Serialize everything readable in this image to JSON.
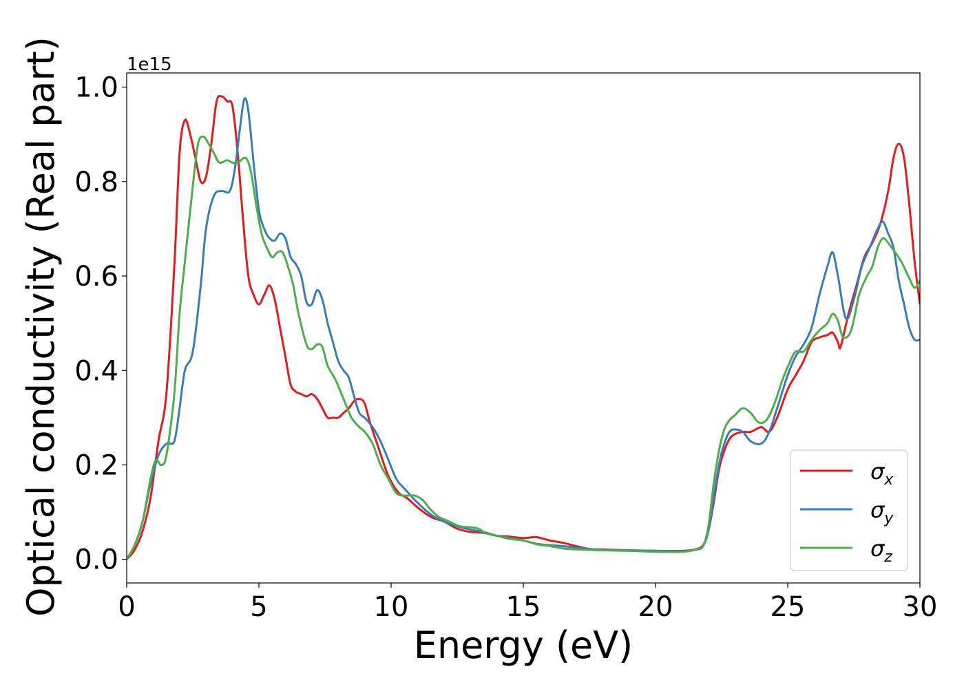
{
  "chart_data": {
    "type": "line",
    "xlabel": "Energy (eV)",
    "ylabel": "Optical conductivity (Real part)",
    "y_offset_label": "1e15",
    "xlim": [
      0,
      30
    ],
    "ylim": [
      -0.05,
      1.03
    ],
    "y_scale_factor": 1000000000000000.0,
    "grid": false,
    "legend_position": "lower-right",
    "x_ticks": [
      0,
      5,
      10,
      15,
      20,
      25,
      30
    ],
    "x_tick_labels": [
      "0",
      "5",
      "10",
      "15",
      "20",
      "25",
      "30"
    ],
    "y_ticks": [
      0.0,
      0.2,
      0.4,
      0.6,
      0.8,
      1.0
    ],
    "y_tick_labels": [
      "0.0",
      "0.2",
      "0.4",
      "0.6",
      "0.8",
      "1.0"
    ],
    "series": [
      {
        "name": "σx",
        "symbol": "σ",
        "subscript": "x",
        "color": "#e41a1c",
        "points": [
          [
            0,
            0
          ],
          [
            0.3,
            0.02
          ],
          [
            0.6,
            0.06
          ],
          [
            0.9,
            0.13
          ],
          [
            1.2,
            0.25
          ],
          [
            1.5,
            0.35
          ],
          [
            1.8,
            0.62
          ],
          [
            2.0,
            0.86
          ],
          [
            2.2,
            0.93
          ],
          [
            2.4,
            0.9
          ],
          [
            2.6,
            0.85
          ],
          [
            2.8,
            0.8
          ],
          [
            3.0,
            0.81
          ],
          [
            3.2,
            0.88
          ],
          [
            3.4,
            0.97
          ],
          [
            3.6,
            0.98
          ],
          [
            3.8,
            0.97
          ],
          [
            4.0,
            0.96
          ],
          [
            4.2,
            0.86
          ],
          [
            4.4,
            0.72
          ],
          [
            4.6,
            0.6
          ],
          [
            4.8,
            0.56
          ],
          [
            5.0,
            0.54
          ],
          [
            5.2,
            0.56
          ],
          [
            5.4,
            0.58
          ],
          [
            5.6,
            0.55
          ],
          [
            5.8,
            0.49
          ],
          [
            6.0,
            0.43
          ],
          [
            6.2,
            0.37
          ],
          [
            6.4,
            0.355
          ],
          [
            6.6,
            0.35
          ],
          [
            6.8,
            0.345
          ],
          [
            7.0,
            0.35
          ],
          [
            7.2,
            0.34
          ],
          [
            7.4,
            0.32
          ],
          [
            7.6,
            0.3
          ],
          [
            7.8,
            0.3
          ],
          [
            8.0,
            0.3
          ],
          [
            8.2,
            0.31
          ],
          [
            8.4,
            0.32
          ],
          [
            8.6,
            0.335
          ],
          [
            8.8,
            0.34
          ],
          [
            9.0,
            0.33
          ],
          [
            9.2,
            0.29
          ],
          [
            9.5,
            0.24
          ],
          [
            9.8,
            0.19
          ],
          [
            10.0,
            0.165
          ],
          [
            10.3,
            0.14
          ],
          [
            10.6,
            0.13
          ],
          [
            11.0,
            0.11
          ],
          [
            11.5,
            0.09
          ],
          [
            12.0,
            0.08
          ],
          [
            12.5,
            0.065
          ],
          [
            13.0,
            0.058
          ],
          [
            13.5,
            0.056
          ],
          [
            14.0,
            0.05
          ],
          [
            14.5,
            0.048
          ],
          [
            15.0,
            0.045
          ],
          [
            15.5,
            0.047
          ],
          [
            16.0,
            0.04
          ],
          [
            16.5,
            0.035
          ],
          [
            17.0,
            0.028
          ],
          [
            17.5,
            0.022
          ],
          [
            18.0,
            0.021
          ],
          [
            19.0,
            0.019
          ],
          [
            20.0,
            0.018
          ],
          [
            21.0,
            0.018
          ],
          [
            21.5,
            0.021
          ],
          [
            21.8,
            0.03
          ],
          [
            22.0,
            0.06
          ],
          [
            22.2,
            0.12
          ],
          [
            22.4,
            0.19
          ],
          [
            22.6,
            0.23
          ],
          [
            22.8,
            0.255
          ],
          [
            23.0,
            0.265
          ],
          [
            23.3,
            0.27
          ],
          [
            23.6,
            0.27
          ],
          [
            24.0,
            0.28
          ],
          [
            24.3,
            0.27
          ],
          [
            24.6,
            0.3
          ],
          [
            25.0,
            0.36
          ],
          [
            25.3,
            0.39
          ],
          [
            25.6,
            0.42
          ],
          [
            25.9,
            0.46
          ],
          [
            26.2,
            0.47
          ],
          [
            26.5,
            0.475
          ],
          [
            26.7,
            0.48
          ],
          [
            26.9,
            0.46
          ],
          [
            27.0,
            0.45
          ],
          [
            27.3,
            0.52
          ],
          [
            27.6,
            0.58
          ],
          [
            27.9,
            0.64
          ],
          [
            28.2,
            0.67
          ],
          [
            28.5,
            0.71
          ],
          [
            28.8,
            0.78
          ],
          [
            29.0,
            0.85
          ],
          [
            29.2,
            0.88
          ],
          [
            29.4,
            0.85
          ],
          [
            29.6,
            0.75
          ],
          [
            29.8,
            0.63
          ],
          [
            30.0,
            0.54
          ]
        ]
      },
      {
        "name": "σy",
        "symbol": "σ",
        "subscript": "y",
        "color": "#377eb8",
        "points": [
          [
            0,
            0
          ],
          [
            0.3,
            0.03
          ],
          [
            0.6,
            0.08
          ],
          [
            0.9,
            0.16
          ],
          [
            1.2,
            0.22
          ],
          [
            1.5,
            0.245
          ],
          [
            1.8,
            0.25
          ],
          [
            2.0,
            0.32
          ],
          [
            2.2,
            0.4
          ],
          [
            2.5,
            0.44
          ],
          [
            2.8,
            0.58
          ],
          [
            3.0,
            0.7
          ],
          [
            3.3,
            0.77
          ],
          [
            3.6,
            0.78
          ],
          [
            3.9,
            0.78
          ],
          [
            4.1,
            0.83
          ],
          [
            4.3,
            0.92
          ],
          [
            4.45,
            0.975
          ],
          [
            4.6,
            0.95
          ],
          [
            4.8,
            0.84
          ],
          [
            5.0,
            0.74
          ],
          [
            5.2,
            0.7
          ],
          [
            5.4,
            0.68
          ],
          [
            5.6,
            0.675
          ],
          [
            5.8,
            0.69
          ],
          [
            6.0,
            0.68
          ],
          [
            6.2,
            0.64
          ],
          [
            6.4,
            0.625
          ],
          [
            6.6,
            0.6
          ],
          [
            6.8,
            0.545
          ],
          [
            7.0,
            0.54
          ],
          [
            7.2,
            0.57
          ],
          [
            7.4,
            0.55
          ],
          [
            7.6,
            0.5
          ],
          [
            7.8,
            0.46
          ],
          [
            8.0,
            0.42
          ],
          [
            8.2,
            0.4
          ],
          [
            8.4,
            0.385
          ],
          [
            8.6,
            0.345
          ],
          [
            8.8,
            0.31
          ],
          [
            9.0,
            0.3
          ],
          [
            9.3,
            0.28
          ],
          [
            9.6,
            0.25
          ],
          [
            9.9,
            0.21
          ],
          [
            10.2,
            0.17
          ],
          [
            10.5,
            0.15
          ],
          [
            11.0,
            0.12
          ],
          [
            11.5,
            0.095
          ],
          [
            12.0,
            0.08
          ],
          [
            12.5,
            0.07
          ],
          [
            13.0,
            0.063
          ],
          [
            13.5,
            0.058
          ],
          [
            14.0,
            0.05
          ],
          [
            14.5,
            0.045
          ],
          [
            15.0,
            0.04
          ],
          [
            15.5,
            0.033
          ],
          [
            16.0,
            0.03
          ],
          [
            16.5,
            0.028
          ],
          [
            17.0,
            0.025
          ],
          [
            17.5,
            0.022
          ],
          [
            18.0,
            0.02
          ],
          [
            19.0,
            0.019
          ],
          [
            20.0,
            0.018
          ],
          [
            21.0,
            0.017
          ],
          [
            21.5,
            0.02
          ],
          [
            21.8,
            0.028
          ],
          [
            22.0,
            0.06
          ],
          [
            22.2,
            0.13
          ],
          [
            22.4,
            0.2
          ],
          [
            22.6,
            0.245
          ],
          [
            22.8,
            0.27
          ],
          [
            23.0,
            0.275
          ],
          [
            23.3,
            0.27
          ],
          [
            23.6,
            0.25
          ],
          [
            24.0,
            0.245
          ],
          [
            24.3,
            0.27
          ],
          [
            24.6,
            0.32
          ],
          [
            25.0,
            0.39
          ],
          [
            25.3,
            0.43
          ],
          [
            25.6,
            0.455
          ],
          [
            25.9,
            0.49
          ],
          [
            26.2,
            0.56
          ],
          [
            26.5,
            0.62
          ],
          [
            26.7,
            0.65
          ],
          [
            26.9,
            0.6
          ],
          [
            27.2,
            0.51
          ],
          [
            27.5,
            0.55
          ],
          [
            27.8,
            0.62
          ],
          [
            28.1,
            0.66
          ],
          [
            28.4,
            0.7
          ],
          [
            28.6,
            0.715
          ],
          [
            28.8,
            0.69
          ],
          [
            29.0,
            0.66
          ],
          [
            29.2,
            0.59
          ],
          [
            29.4,
            0.54
          ],
          [
            29.6,
            0.49
          ],
          [
            29.8,
            0.465
          ],
          [
            30.0,
            0.465
          ]
        ]
      },
      {
        "name": "σz",
        "symbol": "σ",
        "subscript": "z",
        "color": "#4daf4a",
        "points": [
          [
            0,
            0
          ],
          [
            0.3,
            0.03
          ],
          [
            0.6,
            0.08
          ],
          [
            0.9,
            0.17
          ],
          [
            1.1,
            0.21
          ],
          [
            1.3,
            0.2
          ],
          [
            1.5,
            0.22
          ],
          [
            1.8,
            0.35
          ],
          [
            2.0,
            0.52
          ],
          [
            2.2,
            0.63
          ],
          [
            2.5,
            0.79
          ],
          [
            2.7,
            0.88
          ],
          [
            2.9,
            0.895
          ],
          [
            3.1,
            0.88
          ],
          [
            3.3,
            0.86
          ],
          [
            3.5,
            0.84
          ],
          [
            3.8,
            0.845
          ],
          [
            4.0,
            0.84
          ],
          [
            4.2,
            0.84
          ],
          [
            4.5,
            0.85
          ],
          [
            4.7,
            0.82
          ],
          [
            4.9,
            0.75
          ],
          [
            5.1,
            0.69
          ],
          [
            5.3,
            0.66
          ],
          [
            5.5,
            0.64
          ],
          [
            5.7,
            0.65
          ],
          [
            5.9,
            0.65
          ],
          [
            6.1,
            0.62
          ],
          [
            6.3,
            0.58
          ],
          [
            6.5,
            0.52
          ],
          [
            6.8,
            0.455
          ],
          [
            7.0,
            0.445
          ],
          [
            7.2,
            0.455
          ],
          [
            7.4,
            0.45
          ],
          [
            7.6,
            0.41
          ],
          [
            7.9,
            0.38
          ],
          [
            8.2,
            0.34
          ],
          [
            8.5,
            0.3
          ],
          [
            8.8,
            0.28
          ],
          [
            9.0,
            0.27
          ],
          [
            9.3,
            0.245
          ],
          [
            9.6,
            0.2
          ],
          [
            9.9,
            0.17
          ],
          [
            10.2,
            0.14
          ],
          [
            10.5,
            0.135
          ],
          [
            10.9,
            0.135
          ],
          [
            11.2,
            0.125
          ],
          [
            11.5,
            0.105
          ],
          [
            11.8,
            0.09
          ],
          [
            12.2,
            0.08
          ],
          [
            12.6,
            0.07
          ],
          [
            13.0,
            0.068
          ],
          [
            13.3,
            0.065
          ],
          [
            13.6,
            0.055
          ],
          [
            14.0,
            0.05
          ],
          [
            14.5,
            0.043
          ],
          [
            15.0,
            0.04
          ],
          [
            15.5,
            0.032
          ],
          [
            16.0,
            0.028
          ],
          [
            16.5,
            0.023
          ],
          [
            17.0,
            0.021
          ],
          [
            17.5,
            0.02
          ],
          [
            18.0,
            0.019
          ],
          [
            19.0,
            0.018
          ],
          [
            20.0,
            0.016
          ],
          [
            21.0,
            0.016
          ],
          [
            21.5,
            0.02
          ],
          [
            21.8,
            0.028
          ],
          [
            22.0,
            0.07
          ],
          [
            22.2,
            0.16
          ],
          [
            22.4,
            0.23
          ],
          [
            22.6,
            0.275
          ],
          [
            22.8,
            0.295
          ],
          [
            23.0,
            0.305
          ],
          [
            23.3,
            0.32
          ],
          [
            23.6,
            0.31
          ],
          [
            23.9,
            0.29
          ],
          [
            24.2,
            0.295
          ],
          [
            24.5,
            0.33
          ],
          [
            24.8,
            0.38
          ],
          [
            25.1,
            0.42
          ],
          [
            25.3,
            0.44
          ],
          [
            25.6,
            0.44
          ],
          [
            25.9,
            0.465
          ],
          [
            26.2,
            0.485
          ],
          [
            26.5,
            0.5
          ],
          [
            26.7,
            0.52
          ],
          [
            26.9,
            0.505
          ],
          [
            27.1,
            0.47
          ],
          [
            27.4,
            0.485
          ],
          [
            27.7,
            0.56
          ],
          [
            28.0,
            0.6
          ],
          [
            28.2,
            0.62
          ],
          [
            28.4,
            0.66
          ],
          [
            28.6,
            0.68
          ],
          [
            28.8,
            0.67
          ],
          [
            29.0,
            0.655
          ],
          [
            29.3,
            0.63
          ],
          [
            29.6,
            0.595
          ],
          [
            29.8,
            0.575
          ],
          [
            30.0,
            0.59
          ]
        ]
      }
    ]
  }
}
